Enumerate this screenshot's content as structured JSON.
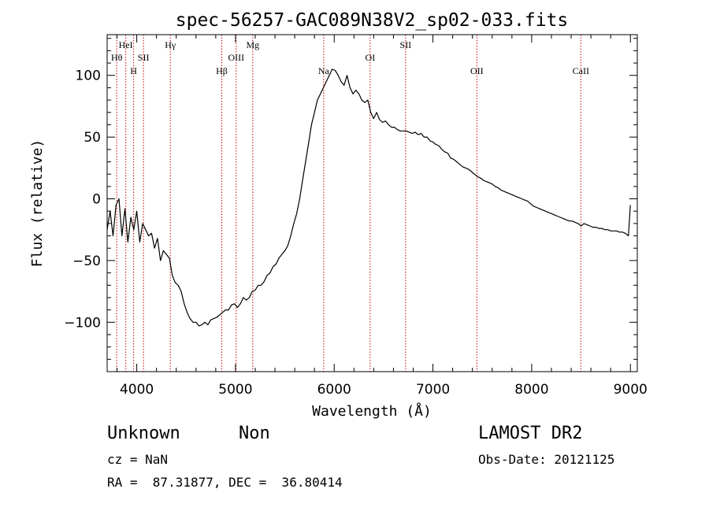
{
  "chart_data": {
    "type": "line",
    "title": "spec-56257-GAC089N38V2_sp02-033.fits",
    "xlabel": "Wavelength (Å)",
    "ylabel": "Flux (relative)",
    "xlim": [
      3700,
      9070
    ],
    "ylim": [
      -140,
      133
    ],
    "xticks": [
      4000,
      5000,
      6000,
      7000,
      8000,
      9000
    ],
    "yticks": [
      -100,
      -50,
      0,
      50,
      100
    ],
    "grid": false,
    "series_color": "#000000",
    "line_color": "#cc0000",
    "series": [
      {
        "points": [
          [
            3700,
            -25
          ],
          [
            3730,
            -10
          ],
          [
            3760,
            -30
          ],
          [
            3790,
            -5
          ],
          [
            3820,
            0
          ],
          [
            3850,
            -30
          ],
          [
            3880,
            -8
          ],
          [
            3910,
            -35
          ],
          [
            3940,
            -15
          ],
          [
            3970,
            -25
          ],
          [
            4000,
            -10
          ],
          [
            4030,
            -35
          ],
          [
            4060,
            -20
          ],
          [
            4090,
            -25
          ],
          [
            4120,
            -30
          ],
          [
            4150,
            -28
          ],
          [
            4180,
            -40
          ],
          [
            4210,
            -32
          ],
          [
            4240,
            -50
          ],
          [
            4270,
            -42
          ],
          [
            4300,
            -45
          ],
          [
            4330,
            -48
          ],
          [
            4360,
            -62
          ],
          [
            4390,
            -68
          ],
          [
            4420,
            -70
          ],
          [
            4450,
            -75
          ],
          [
            4480,
            -85
          ],
          [
            4510,
            -92
          ],
          [
            4540,
            -97
          ],
          [
            4570,
            -100
          ],
          [
            4600,
            -100
          ],
          [
            4630,
            -103
          ],
          [
            4660,
            -102
          ],
          [
            4690,
            -100
          ],
          [
            4720,
            -102
          ],
          [
            4750,
            -98
          ],
          [
            4780,
            -97
          ],
          [
            4810,
            -96
          ],
          [
            4840,
            -94
          ],
          [
            4870,
            -92
          ],
          [
            4900,
            -90
          ],
          [
            4930,
            -90
          ],
          [
            4960,
            -86
          ],
          [
            4990,
            -85
          ],
          [
            5020,
            -88
          ],
          [
            5050,
            -85
          ],
          [
            5080,
            -80
          ],
          [
            5110,
            -82
          ],
          [
            5140,
            -80
          ],
          [
            5170,
            -75
          ],
          [
            5200,
            -74
          ],
          [
            5230,
            -70
          ],
          [
            5260,
            -70
          ],
          [
            5290,
            -67
          ],
          [
            5320,
            -62
          ],
          [
            5350,
            -60
          ],
          [
            5380,
            -55
          ],
          [
            5410,
            -53
          ],
          [
            5440,
            -48
          ],
          [
            5470,
            -45
          ],
          [
            5500,
            -42
          ],
          [
            5530,
            -38
          ],
          [
            5560,
            -30
          ],
          [
            5590,
            -20
          ],
          [
            5620,
            -12
          ],
          [
            5650,
            0
          ],
          [
            5680,
            15
          ],
          [
            5710,
            30
          ],
          [
            5740,
            45
          ],
          [
            5770,
            60
          ],
          [
            5800,
            70
          ],
          [
            5830,
            80
          ],
          [
            5860,
            85
          ],
          [
            5890,
            90
          ],
          [
            5920,
            95
          ],
          [
            5950,
            100
          ],
          [
            5980,
            105
          ],
          [
            6010,
            104
          ],
          [
            6040,
            100
          ],
          [
            6070,
            95
          ],
          [
            6100,
            92
          ],
          [
            6130,
            100
          ],
          [
            6160,
            90
          ],
          [
            6190,
            85
          ],
          [
            6220,
            88
          ],
          [
            6250,
            85
          ],
          [
            6280,
            80
          ],
          [
            6310,
            78
          ],
          [
            6340,
            80
          ],
          [
            6370,
            70
          ],
          [
            6400,
            65
          ],
          [
            6430,
            70
          ],
          [
            6460,
            64
          ],
          [
            6490,
            62
          ],
          [
            6520,
            63
          ],
          [
            6550,
            60
          ],
          [
            6580,
            58
          ],
          [
            6610,
            58
          ],
          [
            6640,
            56
          ],
          [
            6670,
            55
          ],
          [
            6700,
            55
          ],
          [
            6730,
            55
          ],
          [
            6760,
            54
          ],
          [
            6790,
            53
          ],
          [
            6820,
            54
          ],
          [
            6850,
            52
          ],
          [
            6880,
            53
          ],
          [
            6910,
            50
          ],
          [
            6940,
            50
          ],
          [
            6970,
            47
          ],
          [
            7000,
            46
          ],
          [
            7030,
            44
          ],
          [
            7060,
            43
          ],
          [
            7090,
            40
          ],
          [
            7120,
            38
          ],
          [
            7150,
            37
          ],
          [
            7180,
            33
          ],
          [
            7210,
            32
          ],
          [
            7240,
            30
          ],
          [
            7270,
            28
          ],
          [
            7300,
            26
          ],
          [
            7330,
            25
          ],
          [
            7360,
            24
          ],
          [
            7390,
            22
          ],
          [
            7420,
            20
          ],
          [
            7450,
            18
          ],
          [
            7480,
            17
          ],
          [
            7510,
            15
          ],
          [
            7540,
            14
          ],
          [
            7570,
            13
          ],
          [
            7600,
            12
          ],
          [
            7630,
            10
          ],
          [
            7660,
            9
          ],
          [
            7690,
            7
          ],
          [
            7720,
            6
          ],
          [
            7750,
            5
          ],
          [
            7780,
            4
          ],
          [
            7810,
            3
          ],
          [
            7840,
            2
          ],
          [
            7870,
            1
          ],
          [
            7900,
            0
          ],
          [
            7930,
            -1
          ],
          [
            7960,
            -2
          ],
          [
            7990,
            -4
          ],
          [
            8020,
            -6
          ],
          [
            8050,
            -7
          ],
          [
            8080,
            -8
          ],
          [
            8110,
            -9
          ],
          [
            8140,
            -10
          ],
          [
            8170,
            -11
          ],
          [
            8200,
            -12
          ],
          [
            8230,
            -13
          ],
          [
            8260,
            -14
          ],
          [
            8290,
            -15
          ],
          [
            8320,
            -16
          ],
          [
            8350,
            -17
          ],
          [
            8380,
            -18
          ],
          [
            8410,
            -18
          ],
          [
            8440,
            -19
          ],
          [
            8470,
            -20
          ],
          [
            8500,
            -22
          ],
          [
            8530,
            -20
          ],
          [
            8560,
            -21
          ],
          [
            8590,
            -22
          ],
          [
            8620,
            -23
          ],
          [
            8650,
            -23
          ],
          [
            8680,
            -24
          ],
          [
            8710,
            -24
          ],
          [
            8740,
            -25
          ],
          [
            8770,
            -25
          ],
          [
            8800,
            -26
          ],
          [
            8830,
            -26
          ],
          [
            8860,
            -26
          ],
          [
            8890,
            -27
          ],
          [
            8920,
            -27
          ],
          [
            8950,
            -28
          ],
          [
            8980,
            -30
          ],
          [
            9000,
            -5
          ]
        ]
      }
    ],
    "lines": [
      {
        "label": "Hθ",
        "x": 3797
      },
      {
        "label": "HeI",
        "x": 3889
      },
      {
        "label": "H",
        "x": 3968
      },
      {
        "label": "SII",
        "x": 4068
      },
      {
        "label": "Hγ",
        "x": 4340
      },
      {
        "label": "Hβ",
        "x": 4861
      },
      {
        "label": "OIII",
        "x": 5007
      },
      {
        "label": "Mg",
        "x": 5175
      },
      {
        "label": "Na",
        "x": 5893
      },
      {
        "label": "OI",
        "x": 6364
      },
      {
        "label": "SII",
        "x": 6723
      },
      {
        "label": "OII",
        "x": 7445
      },
      {
        "label": "CaII",
        "x": 8498
      }
    ]
  },
  "info": {
    "class": "Unknown",
    "subclass": "Non",
    "survey": "LAMOST DR2",
    "cz": "cz = NaN",
    "obsdate": "Obs-Date: 20121125",
    "radec": "RA =  87.31877, DEC =  36.80414"
  }
}
